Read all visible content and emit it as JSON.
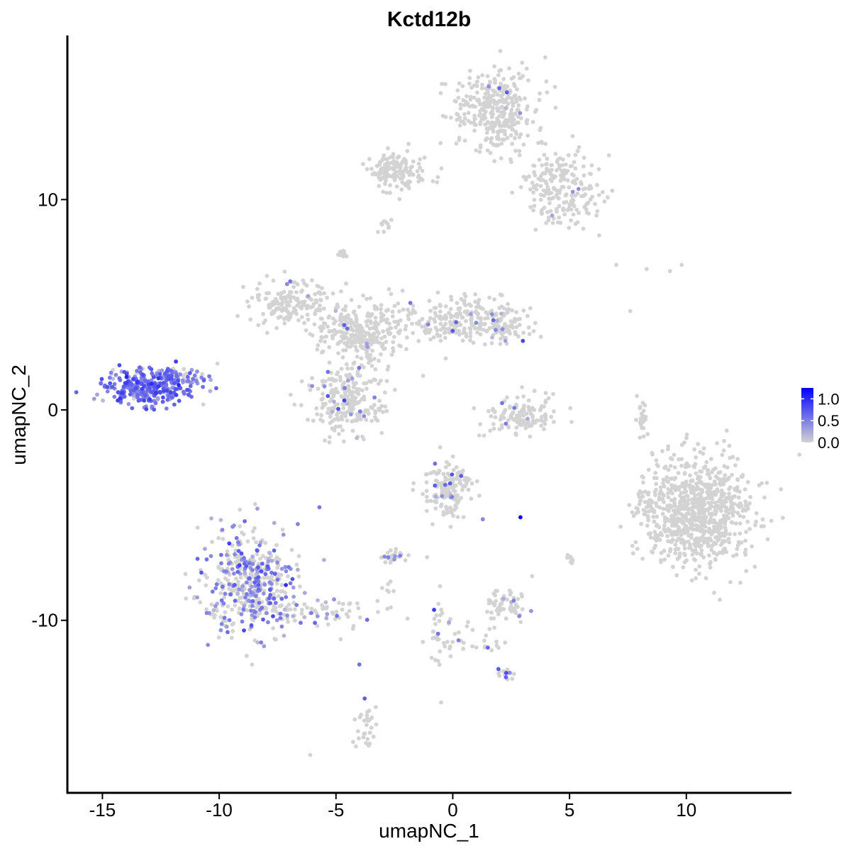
{
  "chart_data": {
    "type": "scatter",
    "title": "Kctd12b",
    "xlabel": "umapNC_1",
    "ylabel": "umapNC_2",
    "xlim": [
      -16.5,
      14.5
    ],
    "ylim": [
      -18.2,
      17.8
    ],
    "x_ticks": [
      -15,
      -10,
      -5,
      0,
      5,
      10
    ],
    "y_ticks": [
      -10,
      0,
      10
    ],
    "x_tick_labels": [
      "-15",
      "-10",
      "-5",
      "0",
      "5",
      "10"
    ],
    "y_tick_labels": [
      "-10",
      "0",
      "10"
    ],
    "grid": false,
    "color_scale": {
      "low_color": "#d3d3d3",
      "high_color": "#0000ff",
      "min": 0,
      "max": 1.25,
      "tick_values": [
        1.0,
        0.5,
        0.0
      ],
      "tick_labels": [
        "1.0",
        "0.5",
        "0.0"
      ],
      "legend_position": "right"
    },
    "clusters": [
      {
        "id": "left-blob",
        "cx": -13.1,
        "cy": 1.1,
        "sx": 0.9,
        "sy": 0.45,
        "n": 340,
        "expr_prob": 0.92,
        "expr_mean": 0.55
      },
      {
        "id": "left-tail",
        "cx": -11.5,
        "cy": 1.5,
        "sx": 0.6,
        "sy": 0.25,
        "n": 50,
        "expr_prob": 0.7,
        "expr_mean": 0.45
      },
      {
        "id": "bottom-left-blob",
        "cx": -8.6,
        "cy": -8.2,
        "sx": 1.0,
        "sy": 1.2,
        "n": 460,
        "expr_prob": 0.45,
        "expr_mean": 0.45
      },
      {
        "id": "bottom-left-tail",
        "cx": -5.6,
        "cy": -9.6,
        "sx": 1.1,
        "sy": 0.35,
        "n": 60,
        "expr_prob": 0.15,
        "expr_mean": 0.4
      },
      {
        "id": "central-star-core",
        "cx": -3.8,
        "cy": 3.7,
        "sx": 1.0,
        "sy": 0.7,
        "n": 300,
        "expr_prob": 0.02,
        "expr_mean": 0.4
      },
      {
        "id": "central-star-left-arm",
        "cx": -6.8,
        "cy": 5.0,
        "sx": 0.9,
        "sy": 0.55,
        "n": 160,
        "expr_prob": 0.02,
        "expr_mean": 0.4
      },
      {
        "id": "central-star-lower-lobe",
        "cx": -4.6,
        "cy": 0.5,
        "sx": 0.85,
        "sy": 0.8,
        "n": 240,
        "expr_prob": 0.1,
        "expr_mean": 0.45
      },
      {
        "id": "central-star-right-arm",
        "cx": 0.4,
        "cy": 4.3,
        "sx": 1.1,
        "sy": 0.6,
        "n": 200,
        "expr_prob": 0.06,
        "expr_mean": 0.45
      },
      {
        "id": "central-star-far-right",
        "cx": 2.2,
        "cy": 4.1,
        "sx": 0.5,
        "sy": 0.5,
        "n": 80,
        "expr_prob": 0.1,
        "expr_mean": 0.5
      },
      {
        "id": "top-cluster-upper",
        "cx": 1.9,
        "cy": 14.2,
        "sx": 0.9,
        "sy": 0.9,
        "n": 340,
        "expr_prob": 0.01,
        "expr_mean": 0.4
      },
      {
        "id": "top-cluster-left-bar",
        "cx": -2.5,
        "cy": 11.3,
        "sx": 0.7,
        "sy": 0.45,
        "n": 130,
        "expr_prob": 0.0,
        "expr_mean": 0.4
      },
      {
        "id": "top-cluster-right",
        "cx": 4.6,
        "cy": 10.5,
        "sx": 0.9,
        "sy": 1.0,
        "n": 220,
        "expr_prob": 0.02,
        "expr_mean": 0.45
      },
      {
        "id": "right-blob",
        "cx": 10.5,
        "cy": -4.8,
        "sx": 1.2,
        "sy": 1.3,
        "n": 820,
        "expr_prob": 0.0,
        "expr_mean": 0.3
      },
      {
        "id": "right-blob-edge",
        "cx": 8.2,
        "cy": -4.6,
        "sx": 0.25,
        "sy": 0.45,
        "n": 25,
        "expr_prob": 0.0,
        "expr_mean": 0.3
      },
      {
        "id": "ring-cluster",
        "cx": 2.8,
        "cy": -0.3,
        "sx": 0.8,
        "sy": 0.45,
        "n": 120,
        "expr_prob": 0.02,
        "expr_mean": 0.4
      },
      {
        "id": "mid-bottom-cluster",
        "cx": -0.2,
        "cy": -3.7,
        "sx": 0.55,
        "sy": 0.65,
        "n": 150,
        "expr_prob": 0.12,
        "expr_mean": 0.5
      },
      {
        "id": "small-cluster-a",
        "cx": -2.5,
        "cy": -6.9,
        "sx": 0.25,
        "sy": 0.15,
        "n": 30,
        "expr_prob": 0.1,
        "expr_mean": 0.45
      },
      {
        "id": "small-cluster-b",
        "cx": 2.3,
        "cy": -9.3,
        "sx": 0.45,
        "sy": 0.35,
        "n": 60,
        "expr_prob": 0.05,
        "expr_mean": 0.4
      },
      {
        "id": "small-cluster-c",
        "cx": 2.3,
        "cy": -12.6,
        "sx": 0.2,
        "sy": 0.12,
        "n": 15,
        "expr_prob": 0.3,
        "expr_mean": 0.7
      },
      {
        "id": "small-cluster-d",
        "cx": -3.7,
        "cy": -15.0,
        "sx": 0.25,
        "sy": 0.6,
        "n": 30,
        "expr_prob": 0.1,
        "expr_mean": 0.55
      },
      {
        "id": "small-cluster-e",
        "cx": 5.0,
        "cy": -7.2,
        "sx": 0.1,
        "sy": 0.15,
        "n": 8,
        "expr_prob": 0.0,
        "expr_mean": 0.3
      },
      {
        "id": "small-cluster-f",
        "cx": -2.8,
        "cy": -8.4,
        "sx": 0.15,
        "sy": 0.15,
        "n": 6,
        "expr_prob": 0.0,
        "expr_mean": 0.3
      },
      {
        "id": "small-cluster-g",
        "cx": -2.7,
        "cy": 11.5,
        "sx": 0.3,
        "sy": 0.4,
        "n": 15,
        "expr_prob": 0.0,
        "expr_mean": 0.3
      },
      {
        "id": "small-cluster-h",
        "cx": -4.7,
        "cy": 7.4,
        "sx": 0.1,
        "sy": 0.15,
        "n": 12,
        "expr_prob": 0.0,
        "expr_mean": 0.3
      },
      {
        "id": "small-cluster-i",
        "cx": -2.9,
        "cy": 8.8,
        "sx": 0.15,
        "sy": 0.2,
        "n": 10,
        "expr_prob": 0.0,
        "expr_mean": 0.3
      },
      {
        "id": "small-cluster-j",
        "cx": 8.1,
        "cy": -0.2,
        "sx": 0.15,
        "sy": 0.5,
        "n": 25,
        "expr_prob": 0.0,
        "expr_mean": 0.3
      },
      {
        "id": "small-cluster-k",
        "cx": 0.5,
        "cy": -11.0,
        "sx": 0.9,
        "sy": 0.4,
        "n": 35,
        "expr_prob": 0.03,
        "expr_mean": 0.4
      },
      {
        "id": "small-cluster-l",
        "cx": -0.6,
        "cy": -10.2,
        "sx": 0.15,
        "sy": 1.0,
        "n": 22,
        "expr_prob": 0.05,
        "expr_mean": 0.4
      }
    ],
    "stray_points": [
      {
        "x": 2.9,
        "y": -5.1,
        "expr": 1.2
      },
      {
        "x": -0.8,
        "y": -9.5,
        "expr": 0.9
      },
      {
        "x": -4.0,
        "y": -12.1,
        "expr": 0.6
      },
      {
        "x": 7.0,
        "y": 6.9,
        "expr": 0.0
      },
      {
        "x": 8.3,
        "y": 6.7,
        "expr": 0.0
      },
      {
        "x": 9.3,
        "y": 6.6,
        "expr": 0.0
      },
      {
        "x": 9.8,
        "y": 6.9,
        "expr": 0.0
      },
      {
        "x": 7.6,
        "y": 4.7,
        "expr": 0.0
      },
      {
        "x": -6.1,
        "y": -16.4,
        "expr": 0.0
      },
      {
        "x": -0.5,
        "y": -13.9,
        "expr": 0.0
      },
      {
        "x": -1.1,
        "y": -7.0,
        "expr": 0.0
      },
      {
        "x": 3.4,
        "y": -7.9,
        "expr": 0.0
      },
      {
        "x": -4.8,
        "y": -10.9,
        "expr": 0.0
      }
    ]
  }
}
